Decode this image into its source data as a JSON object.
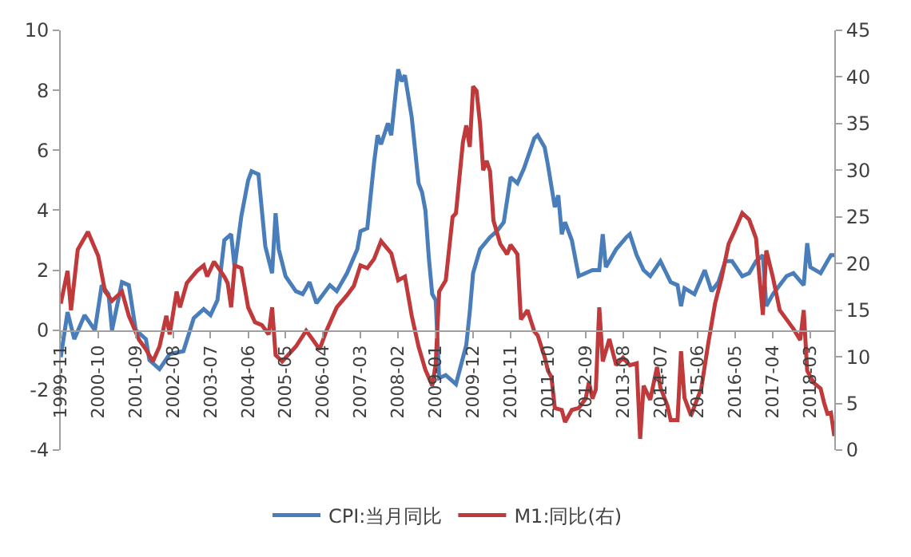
{
  "chart_data": {
    "type": "line",
    "series": [
      {
        "name": "CPI:当月同比",
        "color": "#4a7ebb",
        "x": [
          "1999-11",
          "2000-01",
          "2000-03",
          "2000-06",
          "2000-09",
          "2000-11",
          "2001-01",
          "2001-02",
          "2001-05",
          "2001-07",
          "2001-09",
          "2001-12",
          "2002-01",
          "2002-04",
          "2002-07",
          "2002-11",
          "2003-02",
          "2003-05",
          "2003-07",
          "2003-09",
          "2003-11",
          "2004-01",
          "2004-02",
          "2004-04",
          "2004-06",
          "2004-07",
          "2004-09",
          "2004-11",
          "2005-01",
          "2005-02",
          "2005-03",
          "2005-05",
          "2005-08",
          "2005-10",
          "2005-12",
          "2006-02",
          "2006-06",
          "2006-08",
          "2006-11",
          "2007-02",
          "2007-03",
          "2007-05",
          "2007-07",
          "2007-08",
          "2007-09",
          "2007-11",
          "2007-12",
          "2008-02",
          "2008-03",
          "2008-04",
          "2008-06",
          "2008-08",
          "2008-09",
          "2008-10",
          "2008-11",
          "2008-12",
          "2009-01",
          "2009-02",
          "2009-04",
          "2009-07",
          "2009-10",
          "2009-11",
          "2009-12",
          "2010-02",
          "2010-05",
          "2010-07",
          "2010-09",
          "2010-11",
          "2011-01",
          "2011-03",
          "2011-06",
          "2011-07",
          "2011-09",
          "2011-10",
          "2011-12",
          "2012-01",
          "2012-02",
          "2012-03",
          "2012-05",
          "2012-07",
          "2012-09",
          "2012-11",
          "2013-01",
          "2013-02",
          "2013-03",
          "2013-06",
          "2013-09",
          "2013-10",
          "2013-12",
          "2014-02",
          "2014-04",
          "2014-07",
          "2014-10",
          "2014-12",
          "2015-01",
          "2015-02",
          "2015-05",
          "2015-08",
          "2015-10",
          "2015-12",
          "2016-02",
          "2016-04",
          "2016-07",
          "2016-09",
          "2016-11",
          "2017-01",
          "2017-02",
          "2017-04",
          "2017-06",
          "2017-08",
          "2017-10",
          "2018-01",
          "2018-02",
          "2018-03",
          "2018-06",
          "2018-08",
          "2018-09",
          "2018-10"
        ],
        "values": [
          -0.9,
          0.6,
          -0.3,
          0.5,
          0.0,
          1.5,
          1.2,
          0.0,
          1.6,
          1.5,
          0.0,
          -0.3,
          -1.0,
          -1.3,
          -0.8,
          -0.7,
          0.4,
          0.7,
          0.5,
          1.0,
          3.0,
          3.2,
          2.1,
          3.8,
          5.0,
          5.3,
          5.2,
          2.8,
          1.9,
          3.9,
          2.7,
          1.8,
          1.3,
          1.2,
          1.6,
          0.9,
          1.5,
          1.3,
          1.9,
          2.7,
          3.3,
          3.4,
          5.6,
          6.5,
          6.2,
          6.9,
          6.5,
          8.7,
          8.3,
          8.5,
          7.1,
          4.9,
          4.6,
          4.0,
          2.4,
          1.2,
          1.0,
          -1.6,
          -1.5,
          -1.8,
          -0.5,
          0.6,
          1.9,
          2.7,
          3.1,
          3.3,
          3.6,
          5.1,
          4.9,
          5.4,
          6.4,
          6.5,
          6.1,
          5.5,
          4.1,
          4.5,
          3.2,
          3.6,
          3.0,
          1.8,
          1.9,
          2.0,
          2.0,
          3.2,
          2.1,
          2.7,
          3.1,
          3.2,
          2.5,
          2.0,
          1.8,
          2.3,
          1.6,
          1.5,
          0.8,
          1.4,
          1.2,
          2.0,
          1.3,
          1.6,
          2.3,
          2.3,
          1.8,
          1.9,
          2.3,
          2.5,
          0.8,
          1.2,
          1.5,
          1.8,
          1.9,
          1.5,
          2.9,
          2.1,
          1.9,
          2.3,
          2.5,
          2.5
        ]
      },
      {
        "name": "M1:同比(右)",
        "color": "#c0393b",
        "axis": "y2",
        "x": [
          "1999-11",
          "2000-01",
          "2000-02",
          "2000-04",
          "2000-07",
          "2000-10",
          "2000-12",
          "2001-02",
          "2001-05",
          "2001-07",
          "2001-10",
          "2001-12",
          "2002-02",
          "2002-04",
          "2002-06",
          "2002-07",
          "2002-09",
          "2002-10",
          "2002-12",
          "2003-03",
          "2003-05",
          "2003-06",
          "2003-08",
          "2003-11",
          "2003-12",
          "2004-01",
          "2004-02",
          "2004-04",
          "2004-06",
          "2004-08",
          "2004-10",
          "2004-12",
          "2005-01",
          "2005-02",
          "2005-04",
          "2005-08",
          "2005-11",
          "2006-01",
          "2006-03",
          "2006-05",
          "2006-08",
          "2006-11",
          "2007-01",
          "2007-03",
          "2007-05",
          "2007-07",
          "2007-09",
          "2007-12",
          "2008-02",
          "2008-04",
          "2008-06",
          "2008-08",
          "2008-10",
          "2008-12",
          "2009-01",
          "2009-02",
          "2009-04",
          "2009-06",
          "2009-07",
          "2009-09",
          "2009-10",
          "2009-11",
          "2009-12",
          "2010-01",
          "2010-02",
          "2010-03",
          "2010-04",
          "2010-05",
          "2010-06",
          "2010-08",
          "2010-10",
          "2010-11",
          "2011-01",
          "2011-02",
          "2011-04",
          "2011-06",
          "2011-07",
          "2011-09",
          "2011-10",
          "2011-11",
          "2011-12",
          "2012-02",
          "2012-03",
          "2012-05",
          "2012-07",
          "2012-09",
          "2012-10",
          "2012-11",
          "2012-12",
          "2013-01",
          "2013-02",
          "2013-04",
          "2013-06",
          "2013-08",
          "2013-10",
          "2013-12",
          "2014-01",
          "2014-02",
          "2014-04",
          "2014-06",
          "2014-07",
          "2014-09",
          "2014-10",
          "2014-12",
          "2015-01",
          "2015-02",
          "2015-04",
          "2015-05",
          "2015-07",
          "2015-09",
          "2015-11",
          "2016-01",
          "2016-03",
          "2016-05",
          "2016-07",
          "2016-09",
          "2016-11",
          "2017-01",
          "2017-02",
          "2017-04",
          "2017-06",
          "2017-08",
          "2017-10",
          "2017-12",
          "2018-01",
          "2018-02",
          "2018-04",
          "2018-06",
          "2018-07",
          "2018-08",
          "2018-09",
          "2018-10"
        ],
        "values": [
          15.7,
          19.2,
          15,
          21.5,
          23.4,
          20.8,
          17,
          16,
          17,
          14.4,
          11.8,
          10.8,
          9.5,
          11.1,
          14.4,
          12.4,
          17,
          15.3,
          17.9,
          19.2,
          19.8,
          18.6,
          20.2,
          18.6,
          17.9,
          15.3,
          19.8,
          19.5,
          15.3,
          13.7,
          13.4,
          12.4,
          15.3,
          10.2,
          9.5,
          11.1,
          12.8,
          11.8,
          10.8,
          12.8,
          15.3,
          16.6,
          17.6,
          19.8,
          19.5,
          20.5,
          22.4,
          21.1,
          18.2,
          18.6,
          14.4,
          11.1,
          8.6,
          6.9,
          9.2,
          17,
          18.2,
          25,
          25.4,
          33,
          34.8,
          32.5,
          39,
          38.5,
          35,
          30,
          31,
          29.9,
          24.6,
          22.1,
          21,
          22,
          21,
          14,
          15,
          12.7,
          12.3,
          10,
          8.5,
          7.8,
          4.5,
          4.3,
          3.0,
          4.3,
          4.5,
          5.5,
          7.3,
          5.5,
          6.5,
          15.3,
          9.5,
          11.9,
          9.1,
          9.9,
          9.1,
          9.3,
          1.2,
          6.9,
          5.4,
          8.9,
          6.7,
          4.8,
          3.2,
          3.2,
          10.6,
          5.6,
          3.7,
          4.7,
          6.6,
          11.4,
          15.7,
          18.6,
          22.1,
          23.7,
          25.4,
          24.7,
          22.7,
          14.5,
          21.4,
          18.5,
          15,
          14,
          13,
          11.8,
          15,
          8.5,
          7.2,
          6.6,
          5.1,
          3.9,
          4.0,
          1.5
        ]
      }
    ],
    "xlim": [
      "1999-11",
      "2018-10"
    ],
    "xticks": [
      "1999-11",
      "2000-10",
      "2001-09",
      "2002-08",
      "2003-07",
      "2004-06",
      "2005-05",
      "2006-04",
      "2007-03",
      "2008-02",
      "2009-01",
      "2009-12",
      "2010-11",
      "2011-10",
      "2012-09",
      "2013-08",
      "2014-07",
      "2015-06",
      "2016-05",
      "2017-04",
      "2018-03"
    ],
    "ylim": [
      -4,
      10
    ],
    "yticks": [
      -4,
      -2,
      0,
      2,
      4,
      6,
      8,
      10
    ],
    "y2lim": [
      0,
      45
    ],
    "y2ticks": [
      0,
      5,
      10,
      15,
      20,
      25,
      30,
      35,
      40,
      45
    ],
    "legend": "bottom",
    "marker": "none",
    "line_style": "solid"
  }
}
